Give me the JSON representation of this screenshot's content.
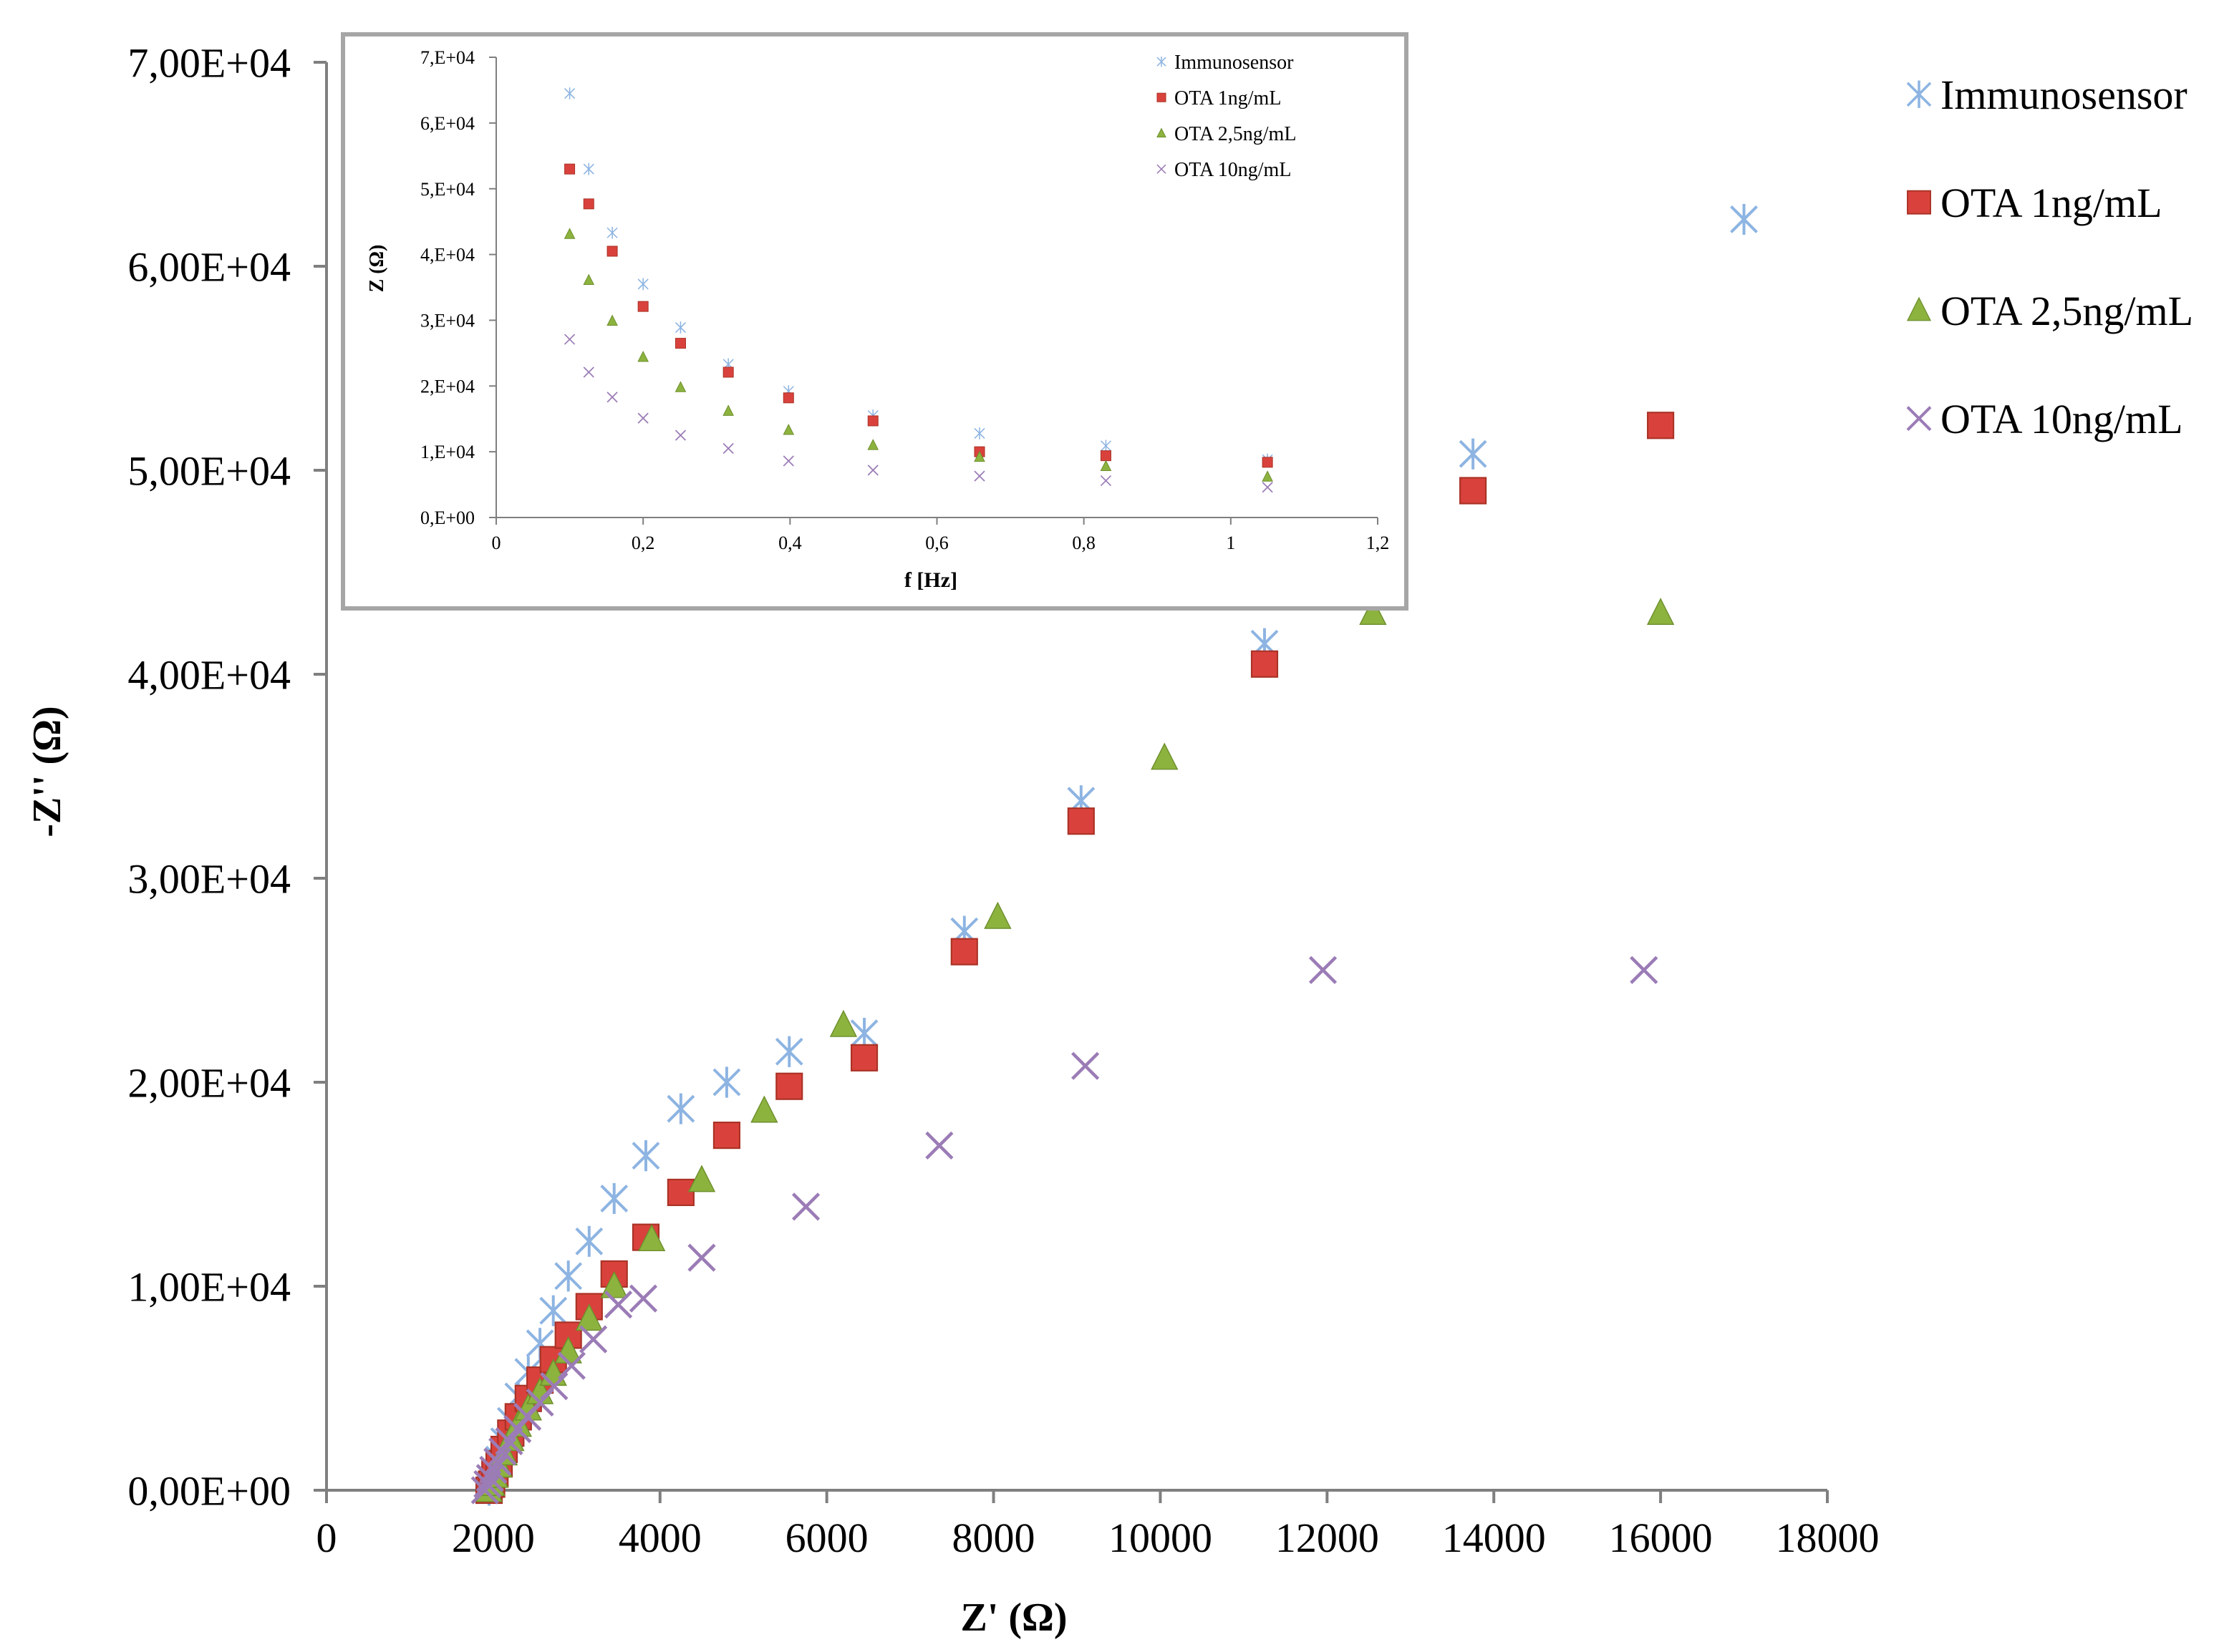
{
  "chart_data": [
    {
      "type": "scatter",
      "title": "",
      "xlabel": "Z' (Ω)",
      "ylabel": "-Z'' (Ω)",
      "xlim": [
        0,
        18000
      ],
      "ylim": [
        0,
        70000
      ],
      "x_ticks": [
        "0",
        "2000",
        "4000",
        "6000",
        "8000",
        "10000",
        "12000",
        "14000",
        "16000",
        "18000"
      ],
      "y_ticks": [
        "0,00E+00",
        "1,00E+04",
        "2,00E+04",
        "3,00E+04",
        "4,00E+04",
        "5,00E+04",
        "6,00E+04",
        "7,00E+04"
      ],
      "grid": false,
      "legend_position": "right",
      "series": [
        {
          "name": "Immunosensor",
          "marker": "asterisk",
          "color": "#8db4e2",
          "x": [
            1950,
            1980,
            2020,
            2070,
            2130,
            2210,
            2300,
            2420,
            2560,
            2720,
            2900,
            3150,
            3450,
            3830,
            4250,
            4800,
            5550,
            6450,
            7650,
            9050,
            11250,
            13750,
            17000
          ],
          "y": [
            0,
            300,
            800,
            1500,
            2400,
            3400,
            4600,
            5800,
            7200,
            8800,
            10500,
            12200,
            14300,
            16400,
            18700,
            20000,
            21500,
            22400,
            27400,
            33800,
            41500,
            50800,
            62300
          ]
        },
        {
          "name": "OTA 1ng/mL",
          "marker": "square",
          "color": "#d9423c",
          "x": [
            1950,
            1980,
            2020,
            2070,
            2130,
            2210,
            2300,
            2420,
            2560,
            2720,
            2900,
            3150,
            3450,
            3830,
            4250,
            4800,
            5550,
            6450,
            7650,
            9050,
            11250,
            13750,
            16000
          ],
          "y": [
            0,
            300,
            800,
            1300,
            2000,
            2800,
            3600,
            4500,
            5400,
            6400,
            7600,
            9000,
            10600,
            12400,
            14600,
            17400,
            19800,
            21200,
            26400,
            32800,
            40500,
            49000,
            52200
          ]
        },
        {
          "name": "OTA 2,5ng/mL",
          "marker": "triangle",
          "color": "#8db33f",
          "x": [
            1950,
            1980,
            2020,
            2070,
            2130,
            2210,
            2300,
            2420,
            2560,
            2720,
            2900,
            3150,
            3450,
            3900,
            4500,
            5250,
            6200,
            8050,
            10050,
            12550,
            16000
          ],
          "y": [
            0,
            300,
            700,
            1200,
            1800,
            2500,
            3200,
            4000,
            4800,
            5700,
            6800,
            8400,
            10000,
            12300,
            15200,
            18600,
            22800,
            28100,
            35900,
            43000,
            43000
          ]
        },
        {
          "name": "OTA 10ng/mL",
          "marker": "cross",
          "color": "#9b7cb6",
          "x": [
            1900,
            1930,
            1960,
            2000,
            2050,
            2110,
            2190,
            2290,
            2410,
            2560,
            2730,
            2940,
            3200,
            3500,
            3800,
            4500,
            5750,
            7350,
            9100,
            11950,
            15800
          ],
          "y": [
            0,
            300,
            600,
            1000,
            1400,
            1900,
            2400,
            3000,
            3600,
            4300,
            5100,
            6100,
            7400,
            9100,
            9400,
            11400,
            13900,
            16900,
            20800,
            25500,
            25500
          ]
        }
      ]
    },
    {
      "type": "scatter",
      "title": "",
      "xlabel": "f [Hz]",
      "ylabel": "Z (Ω)",
      "xlim": [
        0,
        1.2
      ],
      "ylim": [
        0,
        70000
      ],
      "x_ticks": [
        "0",
        "0,2",
        "0,4",
        "0,6",
        "0,8",
        "1",
        "1,2"
      ],
      "y_ticks": [
        "0,E+00",
        "1,E+04",
        "2,E+04",
        "3,E+04",
        "4,E+04",
        "5,E+04",
        "6,E+04",
        "7,E+04"
      ],
      "grid": false,
      "legend_position": "top-right",
      "series": [
        {
          "name": "Immunosensor",
          "marker": "asterisk",
          "color": "#8db4e2",
          "x": [
            0.1,
            0.126,
            0.158,
            0.2,
            0.251,
            0.316,
            0.398,
            0.513,
            0.658,
            0.83,
            1.05
          ],
          "y": [
            64500,
            53000,
            43300,
            35500,
            28900,
            23300,
            19200,
            15500,
            12800,
            10900,
            8800
          ]
        },
        {
          "name": "OTA 1ng/mL",
          "marker": "square",
          "color": "#d9423c",
          "x": [
            0.1,
            0.126,
            0.158,
            0.2,
            0.251,
            0.316,
            0.398,
            0.513,
            0.658,
            0.83,
            1.05
          ],
          "y": [
            53000,
            47700,
            40500,
            32100,
            26500,
            22100,
            18200,
            14700,
            10000,
            9400,
            8400
          ]
        },
        {
          "name": "OTA 2,5ng/mL",
          "marker": "triangle",
          "color": "#8db33f",
          "x": [
            0.1,
            0.126,
            0.158,
            0.2,
            0.251,
            0.316,
            0.398,
            0.513,
            0.658,
            0.83,
            1.05
          ],
          "y": [
            43100,
            36100,
            29900,
            24400,
            19800,
            16200,
            13300,
            11000,
            9200,
            7800,
            6200
          ]
        },
        {
          "name": "OTA 10ng/mL",
          "marker": "cross",
          "color": "#9b7cb6",
          "x": [
            0.1,
            0.126,
            0.158,
            0.2,
            0.251,
            0.316,
            0.398,
            0.513,
            0.658,
            0.83,
            1.05
          ],
          "y": [
            27100,
            22100,
            18300,
            15100,
            12500,
            10500,
            8600,
            7200,
            6300,
            5600,
            4600
          ]
        }
      ]
    }
  ]
}
